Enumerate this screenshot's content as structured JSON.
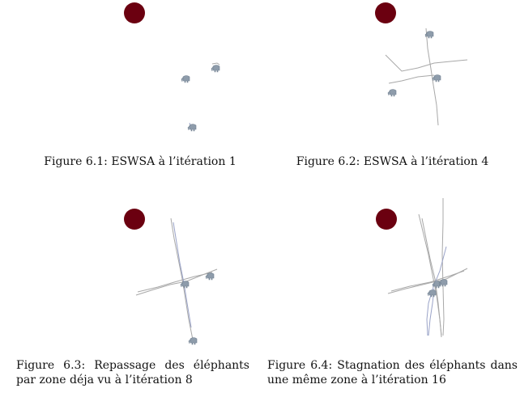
{
  "figures": [
    {
      "label": "Figure 6.1:",
      "text": "ESWSA à l’itération 1"
    },
    {
      "label": "Figure 6.2:",
      "text": "ESWSA à l’itération 4"
    },
    {
      "label": "Figure 6.3:",
      "text": "Repassage des éléphants par zone déja vu à l’itération 8"
    },
    {
      "label": "Figure 6.4:",
      "text": "Stagnation des éléphants dans une même zone à l’itération 16"
    }
  ],
  "colors": {
    "target": "#6b0010",
    "elephant": "#8e9cab",
    "trail_gray": "#a8a8a8",
    "trail_blue": "#9aa3c8",
    "text": "#111111"
  },
  "icons": {
    "target": "dark-red-disc",
    "elephant": "elephant-glyph"
  }
}
